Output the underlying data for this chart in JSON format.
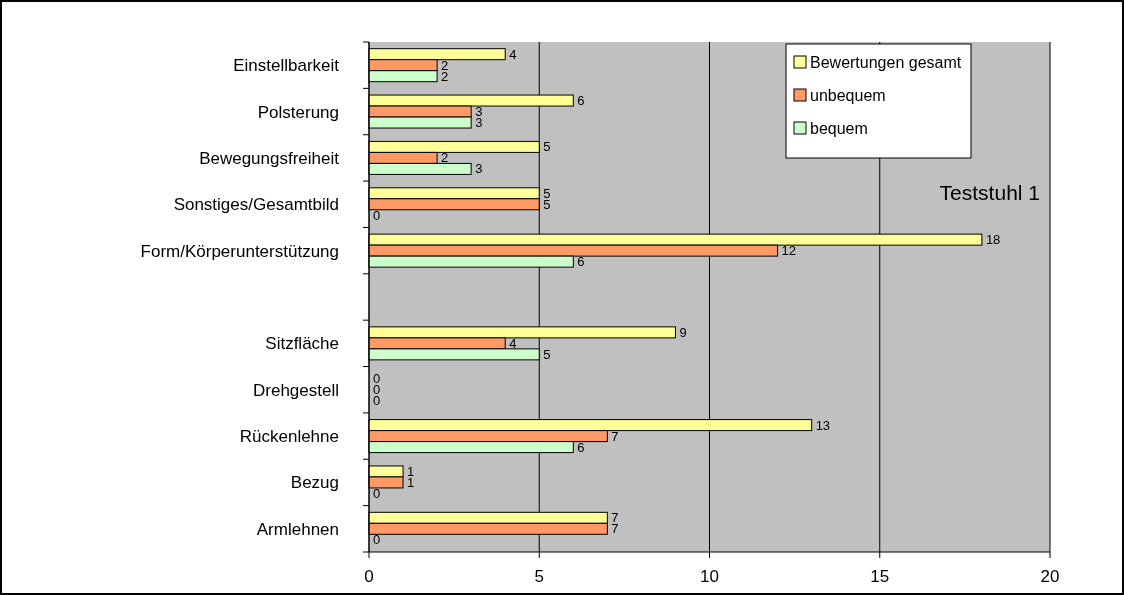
{
  "chart_data": {
    "type": "bar",
    "orientation": "horizontal",
    "categories": [
      "Einstellbarkeit",
      "Polsterung",
      "Bewegungsfreiheit",
      "Sonstiges/Gesamtbild",
      "Form/Körperunterstützung",
      null,
      "Sitzfläche",
      "Drehgestell",
      "Rückenlehne",
      "Bezug",
      "Armlehnen"
    ],
    "series": [
      {
        "name": "Bewertungen gesamt",
        "color": "#ffff99",
        "values": [
          4,
          6,
          5,
          5,
          18,
          null,
          9,
          0,
          13,
          1,
          7
        ]
      },
      {
        "name": "unbequem",
        "color": "#ff9966",
        "values": [
          2,
          3,
          2,
          5,
          12,
          null,
          4,
          0,
          7,
          1,
          7
        ]
      },
      {
        "name": "bequem",
        "color": "#ccffcc",
        "values": [
          2,
          3,
          3,
          0,
          6,
          null,
          5,
          0,
          6,
          0,
          0
        ]
      }
    ],
    "xlim": [
      0,
      20
    ],
    "xticks": [
      0,
      5,
      10,
      15,
      20
    ],
    "grid": "x",
    "legend": "top right",
    "data_labels": true,
    "annotations": [
      "Teststuhl 1"
    ]
  }
}
